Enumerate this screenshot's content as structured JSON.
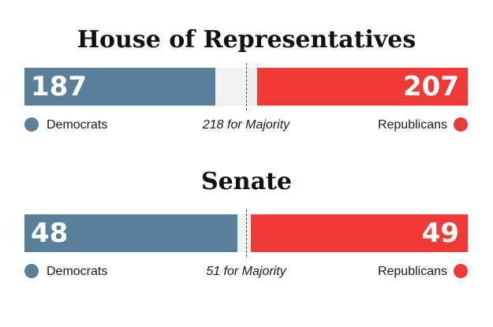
{
  "colors": {
    "democrats": "#5a7f98",
    "republicans": "#f03a36"
  },
  "chart_data": [
    {
      "type": "bar",
      "title": "House of Representatives",
      "total_seats": 435,
      "majority": 218,
      "majority_label": "218 for Majority",
      "series": [
        {
          "name": "Democrats",
          "values": [
            187
          ]
        },
        {
          "name": "Republicans",
          "values": [
            207
          ]
        }
      ],
      "value_labels": {
        "democrats": "187",
        "republicans": "207"
      },
      "legend": {
        "democrats": "Democrats",
        "republicans": "Republicans"
      }
    },
    {
      "type": "bar",
      "title": "Senate",
      "total_seats": 100,
      "majority": 51,
      "majority_label": "51 for Majority",
      "series": [
        {
          "name": "Democrats",
          "values": [
            48
          ]
        },
        {
          "name": "Republicans",
          "values": [
            49
          ]
        }
      ],
      "value_labels": {
        "democrats": "48",
        "republicans": "49"
      },
      "legend": {
        "democrats": "Democrats",
        "republicans": "Republicans"
      }
    }
  ]
}
